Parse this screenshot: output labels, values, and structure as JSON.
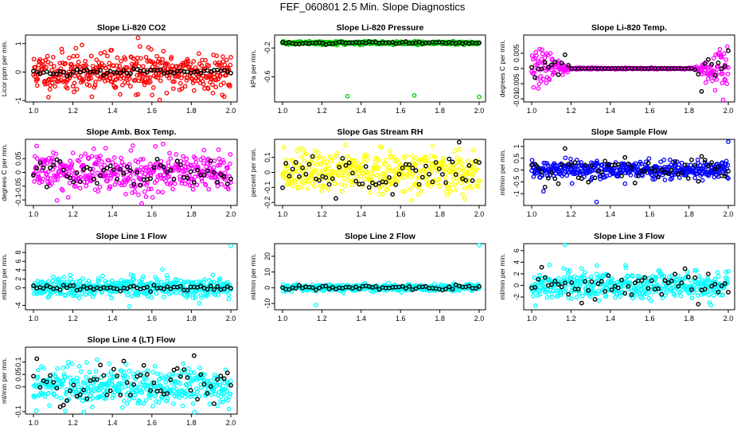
{
  "page_title": "FEF_060801  2.5 Min. Slope Diagnostics",
  "colors": {
    "black": "#000000",
    "red": "#ff0000",
    "green": "#00cc00",
    "magenta": "#ff00ff",
    "yellow": "#ffff00",
    "blue": "#0000ff",
    "cyan": "#00ffff"
  },
  "chart_data": [
    {
      "type": "scatter",
      "id": "li820-co2",
      "title": "Slope Li-820 CO2",
      "ylabel": "Licor ppm per min.",
      "color": "#ff0000",
      "xlim": [
        1.0,
        2.0
      ],
      "ylim": [
        -1.05,
        1.3
      ],
      "xticks": [
        "1.0",
        "1.2",
        "1.4",
        "1.6",
        "1.8",
        "2.0"
      ],
      "yticks": [
        -1,
        0,
        1
      ],
      "noise": 0.35,
      "black_noise": 0.05,
      "seed": 11,
      "extra_points": [
        [
          1.53,
          1.2
        ],
        [
          1.54,
          0.9
        ],
        [
          1.52,
          -0.8
        ]
      ]
    },
    {
      "type": "scatter",
      "id": "li820-pressure",
      "title": "Slope Li-820 Pressure",
      "ylabel": "kPa per min.",
      "color": "#00cc00",
      "xlim": [
        1.0,
        2.0
      ],
      "ylim": [
        -0.95,
        -0.02
      ],
      "xticks": [
        "1.0",
        "1.2",
        "1.4",
        "1.6",
        "1.8",
        "2.0"
      ],
      "yticks": [
        -0.2,
        -0.6
      ],
      "center": -0.13,
      "noise": 0.01,
      "black_noise": 0.01,
      "seed": 22,
      "extra_points": [
        [
          1.33,
          -0.87
        ],
        [
          1.67,
          -0.86
        ],
        [
          2.0,
          -0.88
        ]
      ]
    },
    {
      "type": "scatter",
      "id": "li820-temp",
      "title": "Slope Li-820 Temp.",
      "ylabel": "degrees C per min.",
      "color": "#ff00ff",
      "xlim": [
        1.0,
        2.0
      ],
      "ylim": [
        -0.011,
        0.011
      ],
      "xticks": [
        "1.0",
        "1.2",
        "1.4",
        "1.6",
        "1.8",
        "2.0"
      ],
      "yticks": [
        -0.01,
        -0.005,
        0.0,
        0.005
      ],
      "noise_profile": "edges",
      "noise": 0.004,
      "black_noise": 0.003,
      "seed": 33
    },
    {
      "type": "scatter",
      "id": "amb-box-temp",
      "title": "Slope Amb. Box Temp.",
      "ylabel": "degrees C per min.",
      "color": "#ff00ff",
      "xlim": [
        1.0,
        2.0
      ],
      "ylim": [
        -0.12,
        0.12
      ],
      "xticks": [
        "1.0",
        "1.2",
        "1.4",
        "1.6",
        "1.8",
        "2.0"
      ],
      "yticks": [
        -0.1,
        -0.05,
        0.0,
        0.05
      ],
      "noise": 0.04,
      "black_noise": 0.03,
      "seed": 44
    },
    {
      "type": "scatter",
      "id": "gas-stream-rh",
      "title": "Slope Gas Stream RH",
      "ylabel": "percent per min.",
      "color": "#ffff00",
      "xlim": [
        1.0,
        2.0
      ],
      "ylim": [
        -0.22,
        0.22
      ],
      "xticks": [
        "1.0",
        "1.2",
        "1.4",
        "1.6",
        "1.8",
        "2.0"
      ],
      "yticks": [
        -0.2,
        -0.1,
        0.0,
        0.1
      ],
      "noise": 0.07,
      "black_noise": 0.07,
      "seed": 55
    },
    {
      "type": "scatter",
      "id": "sample-flow",
      "title": "Slope Sample Flow",
      "ylabel": "ml/min per min.",
      "color": "#0000ff",
      "xlim": [
        1.0,
        2.0
      ],
      "ylim": [
        -1.5,
        1.3
      ],
      "xticks": [
        "1.0",
        "1.2",
        "1.4",
        "1.6",
        "1.8",
        "2.0"
      ],
      "yticks": [
        -1.0,
        -0.5,
        0.0,
        0.5,
        1.0
      ],
      "noise": 0.18,
      "black_noise": 0.3,
      "seed": 66,
      "extra_points": [
        [
          1.33,
          -1.35
        ],
        [
          2.0,
          1.2
        ],
        [
          1.06,
          -0.9
        ]
      ]
    },
    {
      "type": "scatter",
      "id": "line1-flow",
      "title": "Slope Line 1 Flow",
      "ylabel": "ml/min per min.",
      "color": "#00ffff",
      "xlim": [
        1.0,
        2.0
      ],
      "ylim": [
        -5,
        10
      ],
      "xticks": [
        "1.0",
        "1.2",
        "1.4",
        "1.6",
        "1.8",
        "2.0"
      ],
      "yticks": [
        -4,
        0,
        2,
        4,
        6,
        8
      ],
      "noise": 1.2,
      "black_noise": 0.4,
      "seed": 77,
      "extra_points": [
        [
          2.0,
          9.5
        ]
      ]
    },
    {
      "type": "scatter",
      "id": "line2-flow",
      "title": "Slope Line 2 Flow",
      "ylabel": "ml/min per min.",
      "color": "#00ffff",
      "xlim": [
        1.0,
        2.0
      ],
      "ylim": [
        -14,
        28
      ],
      "xticks": [
        "1.0",
        "1.2",
        "1.4",
        "1.6",
        "1.8",
        "2.0"
      ],
      "yticks": [
        -10,
        0,
        10,
        20
      ],
      "noise": 1.0,
      "black_noise": 0.8,
      "seed": 88,
      "extra_points": [
        [
          2.0,
          27
        ],
        [
          1.17,
          -11
        ]
      ]
    },
    {
      "type": "scatter",
      "id": "line3-flow",
      "title": "Slope Line 3 Flow",
      "ylabel": "ml/min per min.",
      "color": "#00ffff",
      "xlim": [
        1.0,
        2.0
      ],
      "ylim": [
        -4.2,
        7.2
      ],
      "xticks": [
        "1.0",
        "1.2",
        "1.4",
        "1.6",
        "1.8",
        "2.0"
      ],
      "yticks": [
        -2,
        0,
        2,
        4,
        6
      ],
      "noise": 1.2,
      "black_noise": 1.0,
      "seed": 99,
      "extra_points": [
        [
          1.17,
          7
        ],
        [
          1.02,
          -3.5
        ]
      ]
    },
    {
      "type": "scatter",
      "id": "line4-flow",
      "title": "Slope Line 4 (LT) Flow",
      "ylabel": "ml/min per min.",
      "color": "#00ffff",
      "xlim": [
        1.0,
        2.0
      ],
      "ylim": [
        -0.11,
        0.16
      ],
      "xticks": [
        "1.0",
        "1.2",
        "1.4",
        "1.6",
        "1.8",
        "2.0"
      ],
      "yticks": [
        -0.1,
        0.0,
        0.05,
        0.1
      ],
      "noise": 0.04,
      "black_noise": 0.05,
      "seed": 111
    }
  ]
}
